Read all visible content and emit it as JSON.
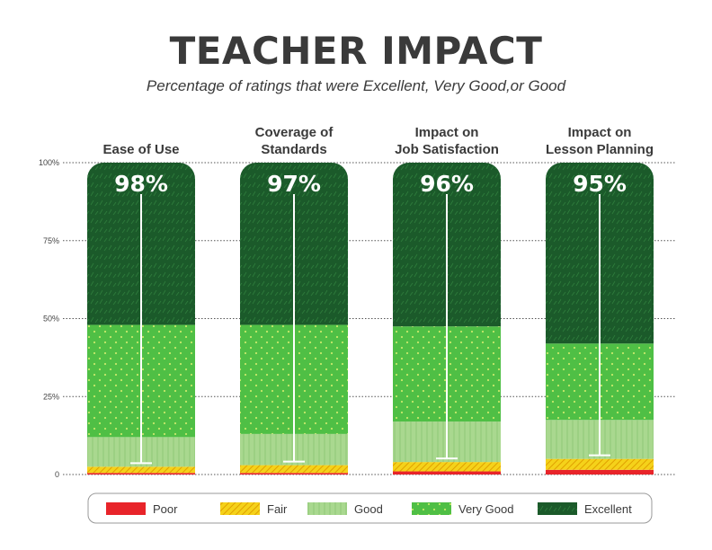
{
  "title": "TEACHER IMPACT",
  "subtitle": "Percentage of ratings that were Excellent, Very Good,or Good",
  "colors": {
    "poor": "#e8242a",
    "fair": "#f5d21a",
    "good": "#a9d88f",
    "very_good": "#4fbf45",
    "excellent": "#1b5a2a",
    "gridline": "#555555",
    "text": "#3a3a3a"
  },
  "chart_data": {
    "type": "bar",
    "stacked": true,
    "categories": [
      [
        "Ease of Use"
      ],
      [
        "Coverage of",
        "Standards"
      ],
      [
        "Impact on",
        "Job Satisfaction"
      ],
      [
        "Impact on",
        "Lesson Planning"
      ]
    ],
    "callouts": [
      "98%",
      "97%",
      "96%",
      "95%"
    ],
    "yticks": [
      "100%",
      "75%",
      "50%",
      "25%",
      "0"
    ],
    "ylim": [
      0,
      100
    ],
    "grid": true,
    "legend_position": "bottom",
    "series": [
      {
        "name": "Poor",
        "key": "poor",
        "values": [
          0.5,
          0.5,
          1,
          1.5
        ]
      },
      {
        "name": "Fair",
        "key": "fair",
        "values": [
          2,
          2.5,
          3,
          3.5
        ]
      },
      {
        "name": "Good",
        "key": "good",
        "values": [
          9.5,
          10,
          13,
          12.5
        ]
      },
      {
        "name": "Very Good",
        "key": "very_good",
        "values": [
          36,
          35,
          30.5,
          24.5
        ]
      },
      {
        "name": "Excellent",
        "key": "excellent",
        "values": [
          52,
          52,
          52.5,
          58
        ]
      }
    ]
  }
}
